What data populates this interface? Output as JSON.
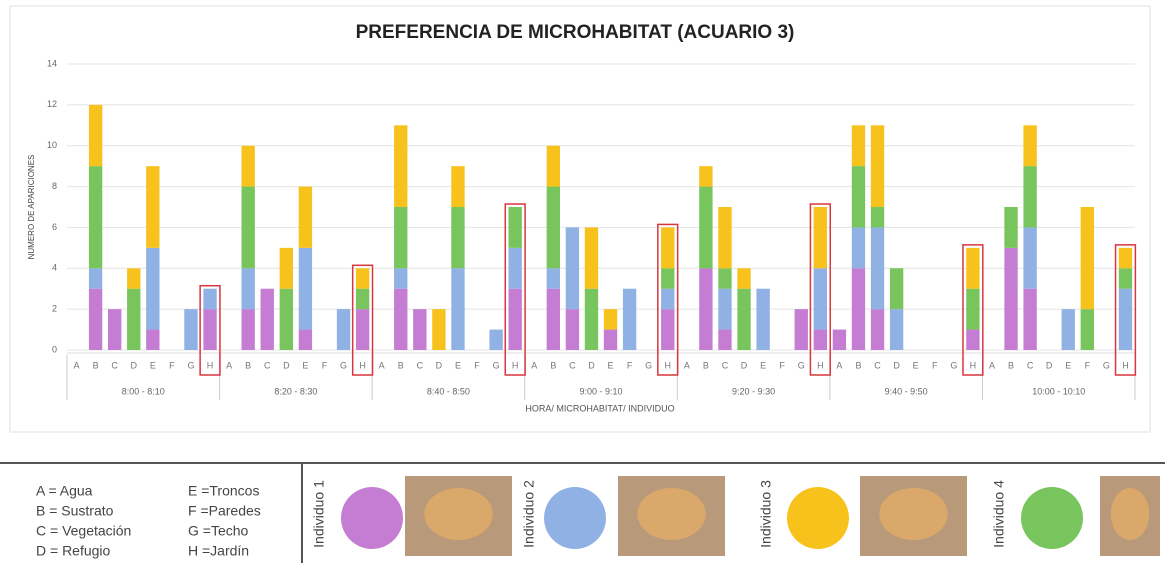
{
  "chart_data": {
    "type": "bar",
    "stacked": true,
    "title": "PREFERENCIA DE MICROHABITAT (ACUARIO 3)",
    "y_label": "NUMERO DE APARICIONES",
    "x_label": "HORA/ MICROHABITAT/ INDIVIDUO",
    "groups": [
      "8:00 - 8:10",
      "8:20 - 8:30",
      "8:40 - 8:50",
      "9:00 - 9:10",
      "9:20 - 9:30",
      "9:40 - 9:50",
      "10:00 - 10:10"
    ],
    "categories": [
      "A",
      "B",
      "C",
      "D",
      "E",
      "F",
      "G",
      "H",
      "A",
      "B",
      "C",
      "D",
      "E",
      "F",
      "G",
      "H",
      "A",
      "B",
      "C",
      "D",
      "E",
      "F",
      "G",
      "H",
      "A",
      "B",
      "C",
      "D",
      "E",
      "F",
      "G",
      "H",
      "A",
      "B",
      "C",
      "D",
      "E",
      "F",
      "G",
      "H",
      "A",
      "B",
      "C",
      "D",
      "E",
      "F",
      "G",
      "H",
      "A",
      "B",
      "C",
      "D",
      "E",
      "F",
      "G",
      "H"
    ],
    "series": [
      {
        "name": "Individuo 1",
        "color": "#c47dd2",
        "values": [
          0,
          3,
          2,
          0,
          1,
          0,
          0,
          2,
          0,
          2,
          3,
          0,
          1,
          0,
          0,
          2,
          0,
          3,
          2,
          0,
          0,
          0,
          0,
          3,
          0,
          3,
          2,
          0,
          1,
          0,
          0,
          2,
          0,
          4,
          1,
          0,
          0,
          0,
          2,
          1,
          1,
          4,
          2,
          0,
          0,
          0,
          0,
          1,
          0,
          5,
          3,
          0,
          0,
          0,
          0,
          0
        ]
      },
      {
        "name": "Individuo 2",
        "color": "#8fb1e4",
        "values": [
          0,
          1,
          0,
          0,
          4,
          0,
          2,
          1,
          0,
          2,
          0,
          0,
          4,
          0,
          2,
          0,
          0,
          1,
          0,
          0,
          4,
          0,
          1,
          2,
          0,
          1,
          4,
          0,
          0,
          3,
          0,
          1,
          0,
          0,
          2,
          0,
          3,
          0,
          0,
          3,
          0,
          2,
          4,
          2,
          0,
          0,
          0,
          0,
          0,
          0,
          3,
          0,
          2,
          0,
          0,
          3
        ]
      },
      {
        "name": "Individuo 4",
        "color": "#77c55c",
        "values": [
          0,
          5,
          0,
          3,
          0,
          0,
          0,
          0,
          0,
          4,
          0,
          3,
          0,
          0,
          0,
          1,
          0,
          3,
          0,
          0,
          3,
          0,
          0,
          2,
          0,
          4,
          0,
          3,
          0,
          0,
          0,
          1,
          0,
          4,
          1,
          3,
          0,
          0,
          0,
          0,
          0,
          3,
          1,
          2,
          0,
          0,
          0,
          2,
          0,
          2,
          3,
          0,
          0,
          2,
          0,
          1
        ]
      },
      {
        "name": "Individuo 3",
        "color": "#f8c21d",
        "values": [
          0,
          3,
          0,
          1,
          4,
          0,
          0,
          0,
          0,
          2,
          0,
          2,
          3,
          0,
          0,
          1,
          0,
          4,
          0,
          2,
          2,
          0,
          0,
          0,
          0,
          2,
          0,
          3,
          1,
          0,
          0,
          2,
          0,
          1,
          3,
          1,
          0,
          0,
          0,
          3,
          0,
          2,
          4,
          0,
          0,
          0,
          0,
          2,
          0,
          0,
          2,
          0,
          0,
          5,
          0,
          1
        ]
      }
    ],
    "ylim": [
      0,
      14
    ],
    "yticks": [
      0,
      2,
      4,
      6,
      8,
      10,
      12,
      14
    ],
    "grid": true,
    "key": [
      "A = Agua",
      "B = Sustrato",
      "C = Vegetación",
      "D = Refugio",
      "E =Troncos",
      "F =Paredes",
      "G =Techo",
      "H =Jardín"
    ]
  }
}
